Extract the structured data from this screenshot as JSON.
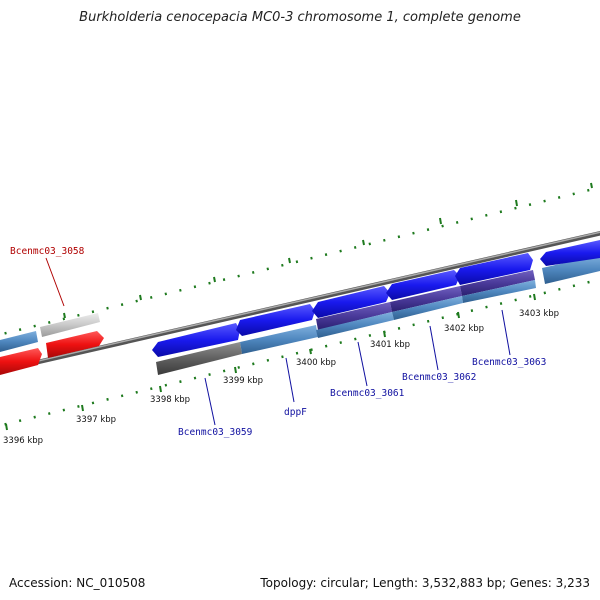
{
  "title": "Burkholderia cenocepacia MC0-3 chromosome 1, complete genome",
  "ticks": [
    {
      "label": "3396 kbp"
    },
    {
      "label": "3397 kbp"
    },
    {
      "label": "3398 kbp"
    },
    {
      "label": "3399 kbp"
    },
    {
      "label": "3400 kbp"
    },
    {
      "label": "3401 kbp"
    },
    {
      "label": "3402 kbp"
    },
    {
      "label": "3403 kbp"
    }
  ],
  "genes": [
    {
      "label": "Bcenmc03_3058",
      "color": "#b00000"
    },
    {
      "label": "Bcenmc03_3059",
      "color": "#1010a0"
    },
    {
      "label": "dppF",
      "color": "#1010a0"
    },
    {
      "label": "Bcenmc03_3061",
      "color": "#1010a0"
    },
    {
      "label": "Bcenmc03_3062",
      "color": "#1010a0"
    },
    {
      "label": "Bcenmc03_3063",
      "color": "#1010a0"
    }
  ],
  "colors": {
    "tick": "#1e7a1e",
    "forward_cds": "#1a1aee",
    "reverse_cds": "#ee1111",
    "gene": "#4f87bf",
    "pseudo": "#c8c8c8",
    "dark_gene": "#606060",
    "backbone": "#888888"
  },
  "accession": "Accession: NC_010508",
  "topology": "Topology: circular; Length: 3,532,883 bp; Genes: 3,233"
}
